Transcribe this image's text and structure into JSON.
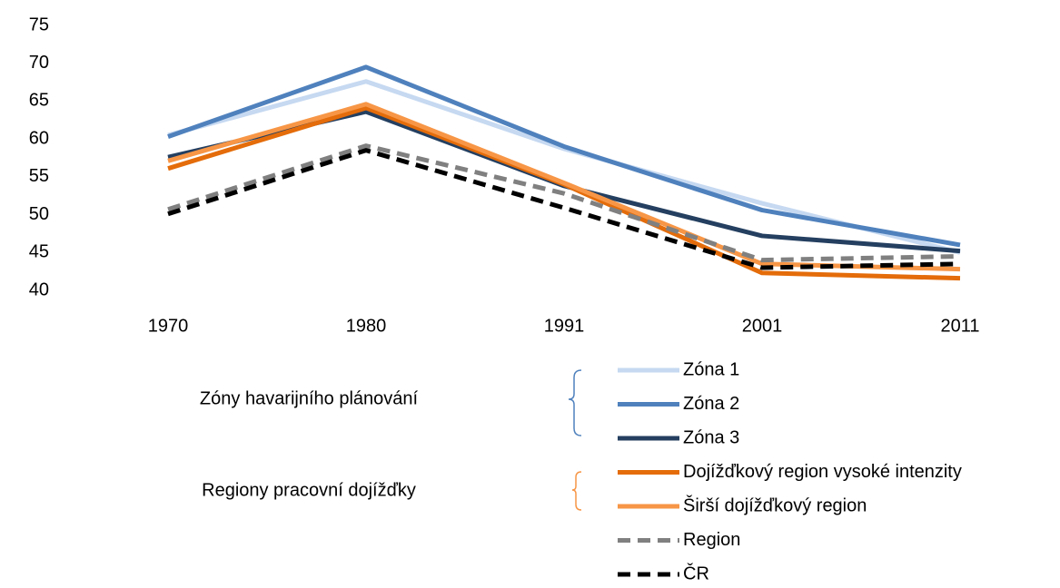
{
  "chart_data": {
    "type": "line",
    "categories": [
      "1970",
      "1980",
      "1991",
      "2001",
      "2011"
    ],
    "ylim": [
      40,
      75
    ],
    "yticks": [
      40,
      45,
      50,
      55,
      60,
      65,
      70,
      75
    ],
    "grid": false,
    "legend_groups": [
      "Zóny havarijního plánování",
      "Regiony pracovní dojížďky"
    ],
    "series": [
      {
        "name": "Zóna 1",
        "color": "#c6d9f1",
        "dashed": false,
        "values": [
          60.5,
          67.6,
          58.7,
          51.5,
          45.0
        ]
      },
      {
        "name": "Zóna 2",
        "color": "#4f81bd",
        "dashed": false,
        "values": [
          60.3,
          69.5,
          59.0,
          50.6,
          46.0
        ]
      },
      {
        "name": "Zóna 3",
        "color": "#243f60",
        "dashed": false,
        "values": [
          57.6,
          63.6,
          53.8,
          47.2,
          45.2
        ]
      },
      {
        "name": "Dojížďkový region vysoké intenzity",
        "color": "#e46c0a",
        "dashed": false,
        "values": [
          56.1,
          64.1,
          54.0,
          42.3,
          41.6
        ]
      },
      {
        "name": "Širší dojížďkový region",
        "color": "#f79646",
        "dashed": false,
        "values": [
          57.1,
          64.6,
          54.2,
          43.5,
          42.8
        ]
      },
      {
        "name": "Region",
        "color": "#808080",
        "dashed": true,
        "values": [
          50.7,
          59.1,
          52.8,
          44.0,
          44.5
        ]
      },
      {
        "name": "ČR",
        "color": "#000000",
        "dashed": true,
        "values": [
          50.1,
          58.5,
          50.9,
          43.0,
          43.5
        ]
      }
    ]
  }
}
